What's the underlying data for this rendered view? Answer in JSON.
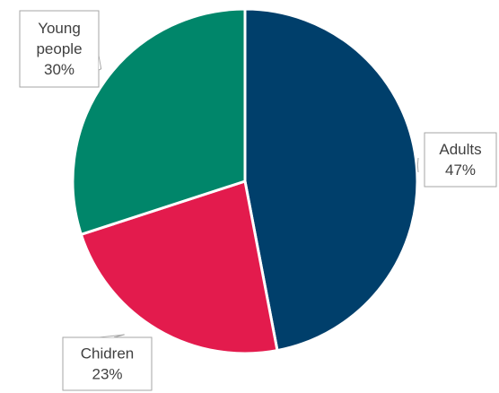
{
  "chart_data": {
    "type": "pie",
    "title": "",
    "categories": [
      "Adults",
      "Chidren",
      "Young people"
    ],
    "values": [
      47,
      23,
      30
    ],
    "value_labels": [
      "47%",
      "23%",
      "30%"
    ],
    "colors": [
      "#003f6b",
      "#e31b4d",
      "#00866a"
    ],
    "legend": "none",
    "start_angle": "12 o'clock",
    "direction": "clockwise"
  }
}
